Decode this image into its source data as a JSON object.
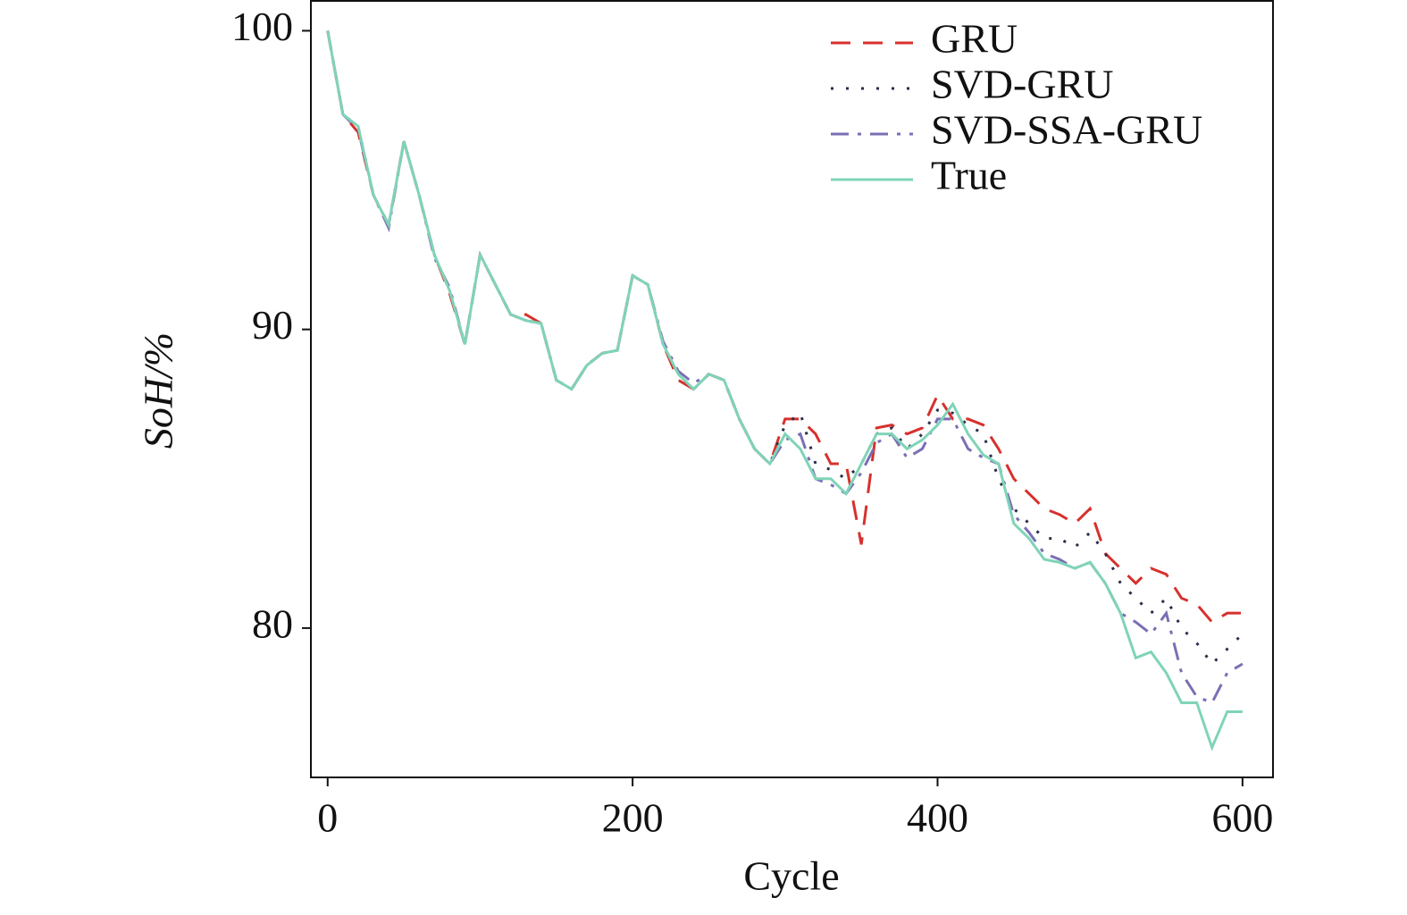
{
  "chart_data": {
    "type": "line",
    "xlabel": "Cycle",
    "ylabel": "SoH/%",
    "x": [
      0,
      10,
      20,
      30,
      40,
      50,
      60,
      70,
      80,
      90,
      100,
      110,
      120,
      130,
      140,
      150,
      160,
      170,
      180,
      190,
      200,
      210,
      220,
      230,
      240,
      250,
      260,
      270,
      280,
      290,
      300,
      310,
      320,
      330,
      340,
      350,
      360,
      370,
      380,
      390,
      400,
      410,
      420,
      430,
      440,
      450,
      460,
      470,
      480,
      490,
      500,
      510,
      520,
      530,
      540,
      550,
      560,
      570,
      580,
      590,
      600
    ],
    "series": [
      {
        "name": "GRU",
        "color": "#d7312e",
        "linestyle": "dashed",
        "values": [
          100,
          97.2,
          96.6,
          94.5,
          93.5,
          96.3,
          94.5,
          92.5,
          91.2,
          89.5,
          92.5,
          91.5,
          90.5,
          90.5,
          90.2,
          88.3,
          88,
          88.8,
          89.2,
          89.3,
          91.8,
          91.5,
          89.5,
          88.3,
          88,
          88.5,
          88.3,
          87,
          86,
          85.5,
          87,
          87,
          86.5,
          85.5,
          85.5,
          82.8,
          86.7,
          86.8,
          86.5,
          86.7,
          87.8,
          87,
          87,
          86.8,
          86,
          85,
          84.5,
          84,
          83.8,
          83.5,
          84,
          82.5,
          82,
          81.5,
          82,
          81.8,
          81,
          80.8,
          80.2,
          80.5,
          80.5
        ]
      },
      {
        "name": "SVD-GRU",
        "color": "#2b2d4a",
        "linestyle": "dotted",
        "values": [
          100,
          97.2,
          96.8,
          94.5,
          93.5,
          96.3,
          94.5,
          92.5,
          91.3,
          89.5,
          92.5,
          91.5,
          90.5,
          90.3,
          90.2,
          88.3,
          88,
          88.8,
          89.2,
          89.3,
          91.8,
          91.5,
          89.5,
          88.5,
          88,
          88.5,
          88.3,
          87,
          86,
          85.5,
          86.8,
          87.2,
          85.5,
          85.3,
          85,
          85.5,
          86.5,
          86.7,
          86,
          86.5,
          87.3,
          87.2,
          86.8,
          86.5,
          85,
          84,
          83.5,
          83,
          83,
          82.7,
          83.2,
          82.5,
          81.5,
          81,
          80.5,
          81,
          80,
          79.5,
          78.8,
          79.3,
          79.8
        ]
      },
      {
        "name": "SVD-SSA-GRU",
        "color": "#7a6fb5",
        "linestyle": "dashdot",
        "values": [
          100,
          97.2,
          96.7,
          94.5,
          93.4,
          96.3,
          94.5,
          92.4,
          91.4,
          89.5,
          92.5,
          91.5,
          90.5,
          90.3,
          90.2,
          88.3,
          88,
          88.8,
          89.2,
          89.3,
          91.8,
          91.5,
          89.6,
          88.6,
          88.2,
          88.5,
          88.3,
          87,
          86,
          85.5,
          86.3,
          86.5,
          85,
          84.8,
          84.5,
          85.2,
          86.2,
          86.5,
          85.7,
          86,
          87,
          87,
          86,
          85.7,
          85.5,
          83.8,
          83.2,
          82.5,
          82.3,
          82,
          82.2,
          81.5,
          80.5,
          80.2,
          79.8,
          80.5,
          78.5,
          77.7,
          77.5,
          78.5,
          78.8
        ]
      },
      {
        "name": "True",
        "color": "#7fd4b8",
        "linestyle": "solid",
        "values": [
          100,
          97.2,
          96.8,
          94.5,
          93.5,
          96.3,
          94.5,
          92.5,
          91.3,
          89.5,
          92.5,
          91.5,
          90.5,
          90.3,
          90.2,
          88.3,
          88,
          88.8,
          89.2,
          89.3,
          91.8,
          91.5,
          89.5,
          88.5,
          88,
          88.5,
          88.3,
          87,
          86,
          85.5,
          86.5,
          86,
          85,
          85,
          84.5,
          85.5,
          86.5,
          86.5,
          86,
          86.3,
          86.8,
          87.5,
          86.5,
          85.8,
          85.5,
          83.5,
          83,
          82.3,
          82.2,
          82,
          82.2,
          81.5,
          80.5,
          79,
          79.2,
          78.5,
          77.5,
          77.5,
          76,
          77.2,
          77.2
        ]
      }
    ],
    "xlim": [
      -11,
      620
    ],
    "xticks": [
      0,
      200,
      400,
      600
    ],
    "ylim": [
      75,
      101
    ],
    "yticks": [
      80,
      90,
      100
    ],
    "legend": "upper right",
    "grid": false
  }
}
